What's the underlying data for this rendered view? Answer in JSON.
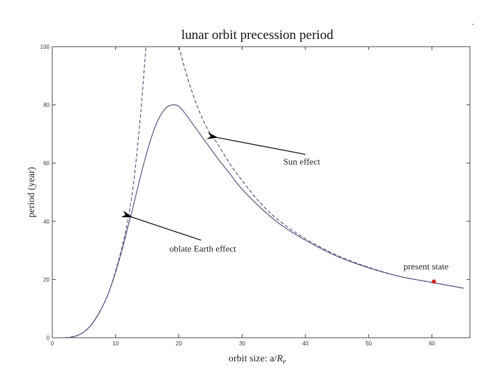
{
  "corner_mark": "-",
  "chart_data": {
    "type": "line",
    "title": "lunar orbit precession period",
    "xlabel_prefix": "orbit size: a/",
    "xlabel_var": "R",
    "xlabel_sub": "e",
    "ylabel": "period (year)",
    "xlim": [
      0,
      66
    ],
    "ylim": [
      0,
      100
    ],
    "xticks": [
      0,
      10,
      20,
      30,
      40,
      50,
      60
    ],
    "yticks": [
      0,
      20,
      40,
      60,
      80,
      100
    ],
    "grid": false,
    "series": [
      {
        "style": "solid",
        "color": "#55557f",
        "x": [
          2,
          3,
          4,
          5,
          6,
          7,
          8,
          9,
          10,
          11,
          12,
          13,
          14,
          15,
          16,
          17,
          18,
          19,
          20,
          21,
          22,
          24,
          26,
          28,
          30,
          33,
          36,
          40,
          45,
          50,
          55,
          60,
          65
        ],
        "y": [
          0,
          0.2,
          0.8,
          2,
          4,
          7,
          11,
          16,
          22.5,
          30,
          38.5,
          47,
          56,
          64,
          71,
          76,
          79,
          80,
          79.5,
          77,
          74,
          68,
          62,
          56.5,
          51,
          44.5,
          39,
          33.5,
          28,
          24,
          21,
          19,
          17
        ]
      },
      {
        "style": "dashed",
        "color": "#55557f",
        "x": [
          2,
          4,
          6,
          8,
          9,
          10,
          11,
          12,
          13,
          14,
          14.8
        ],
        "y": [
          0,
          0.8,
          4,
          11,
          16,
          23,
          31,
          41,
          56,
          78,
          100
        ]
      },
      {
        "style": "dashed",
        "color": "#55557f",
        "x": [
          20,
          21,
          22,
          23,
          24,
          25,
          26,
          28,
          30,
          33,
          36,
          40,
          45,
          50,
          55,
          60,
          65
        ],
        "y": [
          100,
          92,
          85,
          79,
          74,
          70,
          67,
          60,
          54,
          46,
          40,
          34,
          28.3,
          24.2,
          21,
          19,
          17
        ]
      }
    ],
    "points": [
      {
        "x": 60.3,
        "y": 19.3,
        "color": "#cc2222"
      }
    ],
    "annotations": [
      {
        "text": "Sun effect",
        "text_x": 36.5,
        "text_y": 59.5,
        "tail_x": 40,
        "tail_y": 63,
        "head_x": 26,
        "head_y": 68.8
      },
      {
        "text": "oblate Earth effect",
        "text_x": 18.5,
        "text_y": 29.5,
        "tail_x": 23.5,
        "tail_y": 33.5,
        "head_x": 12.5,
        "head_y": 41.5
      },
      {
        "text": "present state",
        "text_x": 55.5,
        "text_y": 23.5
      }
    ]
  }
}
